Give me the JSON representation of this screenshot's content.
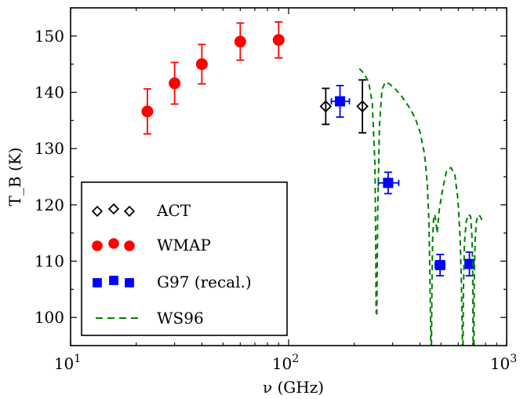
{
  "chart_data": {
    "type": "scatter",
    "title": "",
    "xlabel": "ν (GHz)",
    "ylabel": "T_B (K)",
    "xscale": "log",
    "xlim": [
      10,
      1000
    ],
    "ylim": [
      95,
      155
    ],
    "xticks": [
      {
        "value": 10,
        "base": "10",
        "exp": "1"
      },
      {
        "value": 100,
        "base": "10",
        "exp": "2"
      },
      {
        "value": 1000,
        "base": "10",
        "exp": "3"
      }
    ],
    "yticks": [
      100,
      110,
      120,
      130,
      140,
      150
    ],
    "grid": false,
    "legend_position": "lower-left",
    "series": [
      {
        "name": "ACT",
        "marker": "diamond-open",
        "color": "#000000",
        "points": [
          {
            "x": 148,
            "y": 137.5,
            "yerr": 3.2,
            "xerr": 0
          },
          {
            "x": 218,
            "y": 137.5,
            "yerr": 4.7,
            "xerr": 0
          }
        ]
      },
      {
        "name": "WMAP",
        "marker": "circle",
        "color": "#ff0000",
        "points": [
          {
            "x": 22.5,
            "y": 136.6,
            "yerr": 4.0
          },
          {
            "x": 30,
            "y": 141.6,
            "yerr": 3.7
          },
          {
            "x": 40,
            "y": 145.0,
            "yerr": 3.5
          },
          {
            "x": 60,
            "y": 149.0,
            "yerr": 3.3
          },
          {
            "x": 90,
            "y": 149.3,
            "yerr": 3.2
          }
        ]
      },
      {
        "name": "G97 (recal.)",
        "marker": "square",
        "color": "#0000ff",
        "points": [
          {
            "x": 172,
            "y": 138.4,
            "yerr": 2.8,
            "xlo": 157,
            "xhi": 190
          },
          {
            "x": 286,
            "y": 123.9,
            "yerr": 1.9,
            "xlo": 258,
            "xhi": 320
          },
          {
            "x": 495,
            "y": 109.3,
            "yerr": 1.9,
            "xlo": 470,
            "xhi": 520
          },
          {
            "x": 675,
            "y": 109.5,
            "yerr": 2.1,
            "xlo": 648,
            "xhi": 705
          }
        ]
      },
      {
        "name": "WS96",
        "marker": "dashed-line",
        "color": "#008000",
        "segments": [
          [
            [
              211,
              144.2
            ],
            [
              221,
              143.4
            ],
            [
              233,
              141.8
            ],
            [
              242,
              138.0
            ],
            [
              249,
              127.0
            ],
            [
              251,
              112.0
            ],
            [
              252,
              100.7
            ]
          ],
          [
            [
              254,
              100.5
            ],
            [
              256,
              118.0
            ],
            [
              261,
              134.0
            ],
            [
              268,
              140.5
            ],
            [
              278,
              141.8
            ],
            [
              290,
              141.5
            ],
            [
              310,
              140.5
            ],
            [
              330,
              139.3
            ],
            [
              355,
              137.5
            ],
            [
              380,
              135.5
            ],
            [
              400,
              133.0
            ],
            [
              420,
              129.0
            ],
            [
              432,
              124.0
            ],
            [
              440,
              117.0
            ],
            [
              445,
              107.0
            ],
            [
              448,
              98.0
            ],
            [
              449,
              95.0
            ]
          ],
          [
            [
              452,
              95.0
            ],
            [
              453,
              100.0
            ],
            [
              455,
              108.0
            ],
            [
              458,
              114.0
            ],
            [
              462,
              117.5
            ],
            [
              467,
              118.3
            ],
            [
              472,
              117.5
            ],
            [
              480,
              115.0
            ],
            [
              490,
              119.0
            ],
            [
              510,
              123.0
            ],
            [
              530,
              126.0
            ],
            [
              555,
              126.6
            ],
            [
              578,
              125.5
            ],
            [
              598,
              121.0
            ],
            [
              612,
              114.0
            ],
            [
              620,
              106.0
            ],
            [
              625,
              98.0
            ],
            [
              627,
              95.0
            ]
          ],
          [
            [
              631,
              95.0
            ],
            [
              633,
              104.0
            ],
            [
              640,
              113.0
            ],
            [
              652,
              117.0
            ],
            [
              668,
              118.3
            ],
            [
              683,
              118.0
            ],
            [
              693,
              114.5
            ],
            [
              698,
              110.0
            ],
            [
              700,
              104.0
            ],
            [
              701,
              98.0
            ],
            [
              702,
              95.0
            ]
          ],
          [
            [
              708,
              95.0
            ],
            [
              710,
              106.0
            ],
            [
              716,
              113.5
            ],
            [
              726,
              117.0
            ],
            [
              740,
              118.2
            ],
            [
              755,
              118.0
            ],
            [
              770,
              117.3
            ]
          ]
        ]
      }
    ]
  }
}
